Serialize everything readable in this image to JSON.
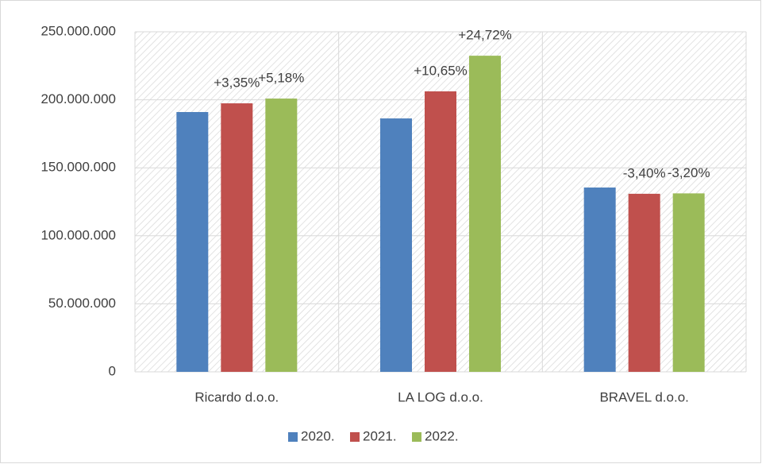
{
  "chart_data": {
    "type": "bar",
    "categories": [
      "Ricardo d.o.o.",
      "LA LOG d.o.o.",
      "BRAVEL d.o.o."
    ],
    "series": [
      {
        "name": "2020.",
        "color": "#4f81bd",
        "values": [
          191000000,
          186300000,
          135500000
        ]
      },
      {
        "name": "2021.",
        "color": "#c0504d",
        "values": [
          197400000,
          206200000,
          130900000
        ],
        "change_labels": [
          "+3,35%",
          "+10,65%",
          "-3,40%"
        ]
      },
      {
        "name": "2022.",
        "color": "#9bbb59",
        "values": [
          200900000,
          232400000,
          131200000
        ],
        "change_labels": [
          "+5,18%",
          "+24,72%",
          "-3,20%"
        ]
      }
    ],
    "ylim": [
      0,
      250000000
    ],
    "yticks": [
      0,
      {
        "value": 50000000,
        "label": "50.000.000"
      },
      {
        "value": 100000000,
        "label": "100.000.000"
      },
      {
        "value": 150000000,
        "label": "150.000.000"
      },
      {
        "value": 200000000,
        "label": "200.000.000"
      },
      {
        "value": 250000000,
        "label": "250.000.000"
      }
    ],
    "grid": true,
    "legend": "bottom"
  }
}
